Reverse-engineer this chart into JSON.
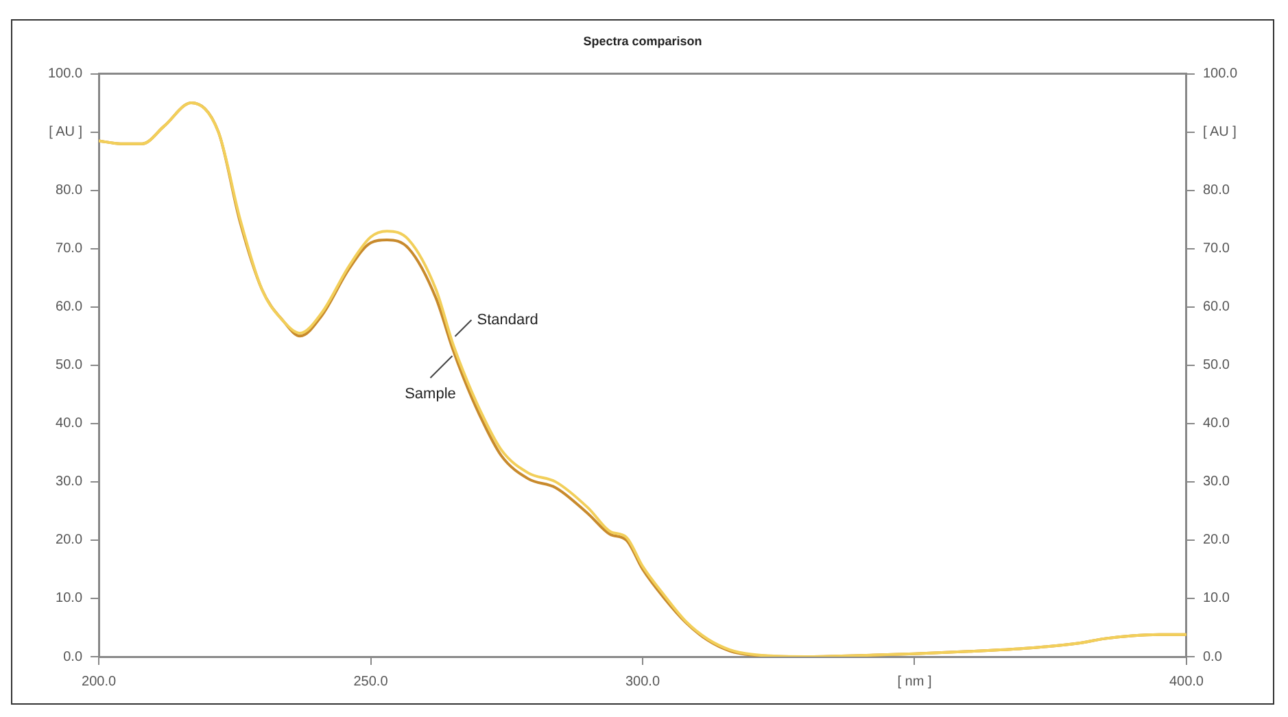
{
  "chart_data": {
    "type": "line",
    "title": "Spectra comparison",
    "x": [
      200,
      204,
      208,
      212,
      217,
      222,
      226,
      230,
      234,
      237,
      241,
      246,
      250,
      253,
      257,
      262,
      265,
      267,
      270,
      274,
      279,
      284,
      290,
      294,
      297,
      300,
      304,
      308,
      312,
      316,
      320,
      330,
      340,
      350,
      360,
      370,
      380,
      385,
      390,
      395,
      400
    ],
    "series": [
      {
        "name": "Standard",
        "color": "#f2cf5a",
        "values": [
          88.5,
          88,
          88,
          91,
          95,
          90,
          75,
          63,
          57.5,
          55.5,
          59,
          67,
          72,
          73,
          71.5,
          63,
          54,
          49,
          42.5,
          35.5,
          31.5,
          30,
          25.5,
          21.5,
          20.5,
          15.5,
          10.5,
          6,
          3,
          1.2,
          0.4,
          0,
          0.2,
          0.5,
          0.9,
          1.4,
          2.3,
          3.1,
          3.6,
          3.8,
          3.8
        ]
      },
      {
        "name": "Sample",
        "color": "#c88a2c",
        "values": [
          88.5,
          88,
          88,
          91,
          95,
          90,
          74.5,
          63,
          57.5,
          55,
          58.5,
          66.5,
          71,
          71.5,
          70,
          61.5,
          53,
          48,
          41.5,
          34.5,
          30.5,
          29,
          24.5,
          21,
          20,
          15,
          10,
          5.8,
          2.8,
          1,
          0.3,
          0,
          0.2,
          0.5,
          0.9,
          1.4,
          2.3,
          3.1,
          3.6,
          3.8,
          3.8
        ]
      }
    ],
    "xlim": [
      200,
      400
    ],
    "xticks": [
      {
        "value": 200,
        "label": "200.0"
      },
      {
        "value": 250,
        "label": "250.0"
      },
      {
        "value": 300,
        "label": "300.0"
      },
      {
        "value": 350,
        "label": "[ nm ]"
      },
      {
        "value": 400,
        "label": "400.0"
      }
    ],
    "ylim": [
      0,
      100
    ],
    "yticks": [
      {
        "value": 0,
        "label": "0.0"
      },
      {
        "value": 10,
        "label": "10.0"
      },
      {
        "value": 20,
        "label": "20.0"
      },
      {
        "value": 30,
        "label": "30.0"
      },
      {
        "value": 40,
        "label": "40.0"
      },
      {
        "value": 50,
        "label": "50.0"
      },
      {
        "value": 60,
        "label": "60.0"
      },
      {
        "value": 70,
        "label": "70.0"
      },
      {
        "value": 80,
        "label": "80.0"
      },
      {
        "value": 90,
        "label": "[ AU ]"
      },
      {
        "value": 100,
        "label": "100.0"
      }
    ],
    "y2lim": [
      0,
      100
    ],
    "y2ticks": [
      {
        "value": 0,
        "label": "0.0"
      },
      {
        "value": 10,
        "label": "10.0"
      },
      {
        "value": 20,
        "label": "20.0"
      },
      {
        "value": 30,
        "label": "30.0"
      },
      {
        "value": 40,
        "label": "40.0"
      },
      {
        "value": 50,
        "label": "50.0"
      },
      {
        "value": 60,
        "label": "60.0"
      },
      {
        "value": 70,
        "label": "70.0"
      },
      {
        "value": 80,
        "label": "80.0"
      },
      {
        "value": 90,
        "label": "[ AU ]"
      },
      {
        "value": 100,
        "label": "100.0"
      }
    ],
    "grid": false,
    "legend": false
  }
}
